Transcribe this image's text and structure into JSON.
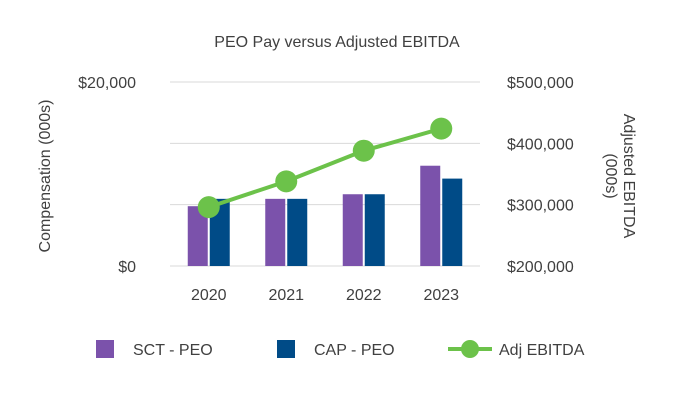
{
  "chart_data": {
    "type": "bar",
    "title": "PEO Pay versus Adjusted EBITDA",
    "categories": [
      "2020",
      "2021",
      "2022",
      "2023"
    ],
    "ylabel": "Compensation (000s)",
    "ylim": [
      0,
      20000
    ],
    "y_ticks": [
      "$0",
      "$20,000"
    ],
    "y2label": "Adjusted EBITDA (000s)",
    "y2lim": [
      200000,
      500000
    ],
    "y2_ticks": [
      "$200,000",
      "$300,000",
      "$400,000",
      "$500,000"
    ],
    "grid": "horizontal",
    "legend_position": "bottom",
    "series": [
      {
        "name": "SCT - PEO",
        "kind": "bar",
        "axis": "left",
        "color": "#7B52AB",
        "values": [
          6500,
          7300,
          7800,
          10900
        ]
      },
      {
        "name": "CAP - PEO",
        "kind": "bar",
        "axis": "left",
        "color": "#004B87",
        "values": [
          7300,
          7300,
          7800,
          9500
        ]
      },
      {
        "name": "Adj EBITDA",
        "kind": "line",
        "axis": "right",
        "color": "#6CC24A",
        "values": [
          296000,
          338000,
          388000,
          424000
        ]
      }
    ]
  }
}
